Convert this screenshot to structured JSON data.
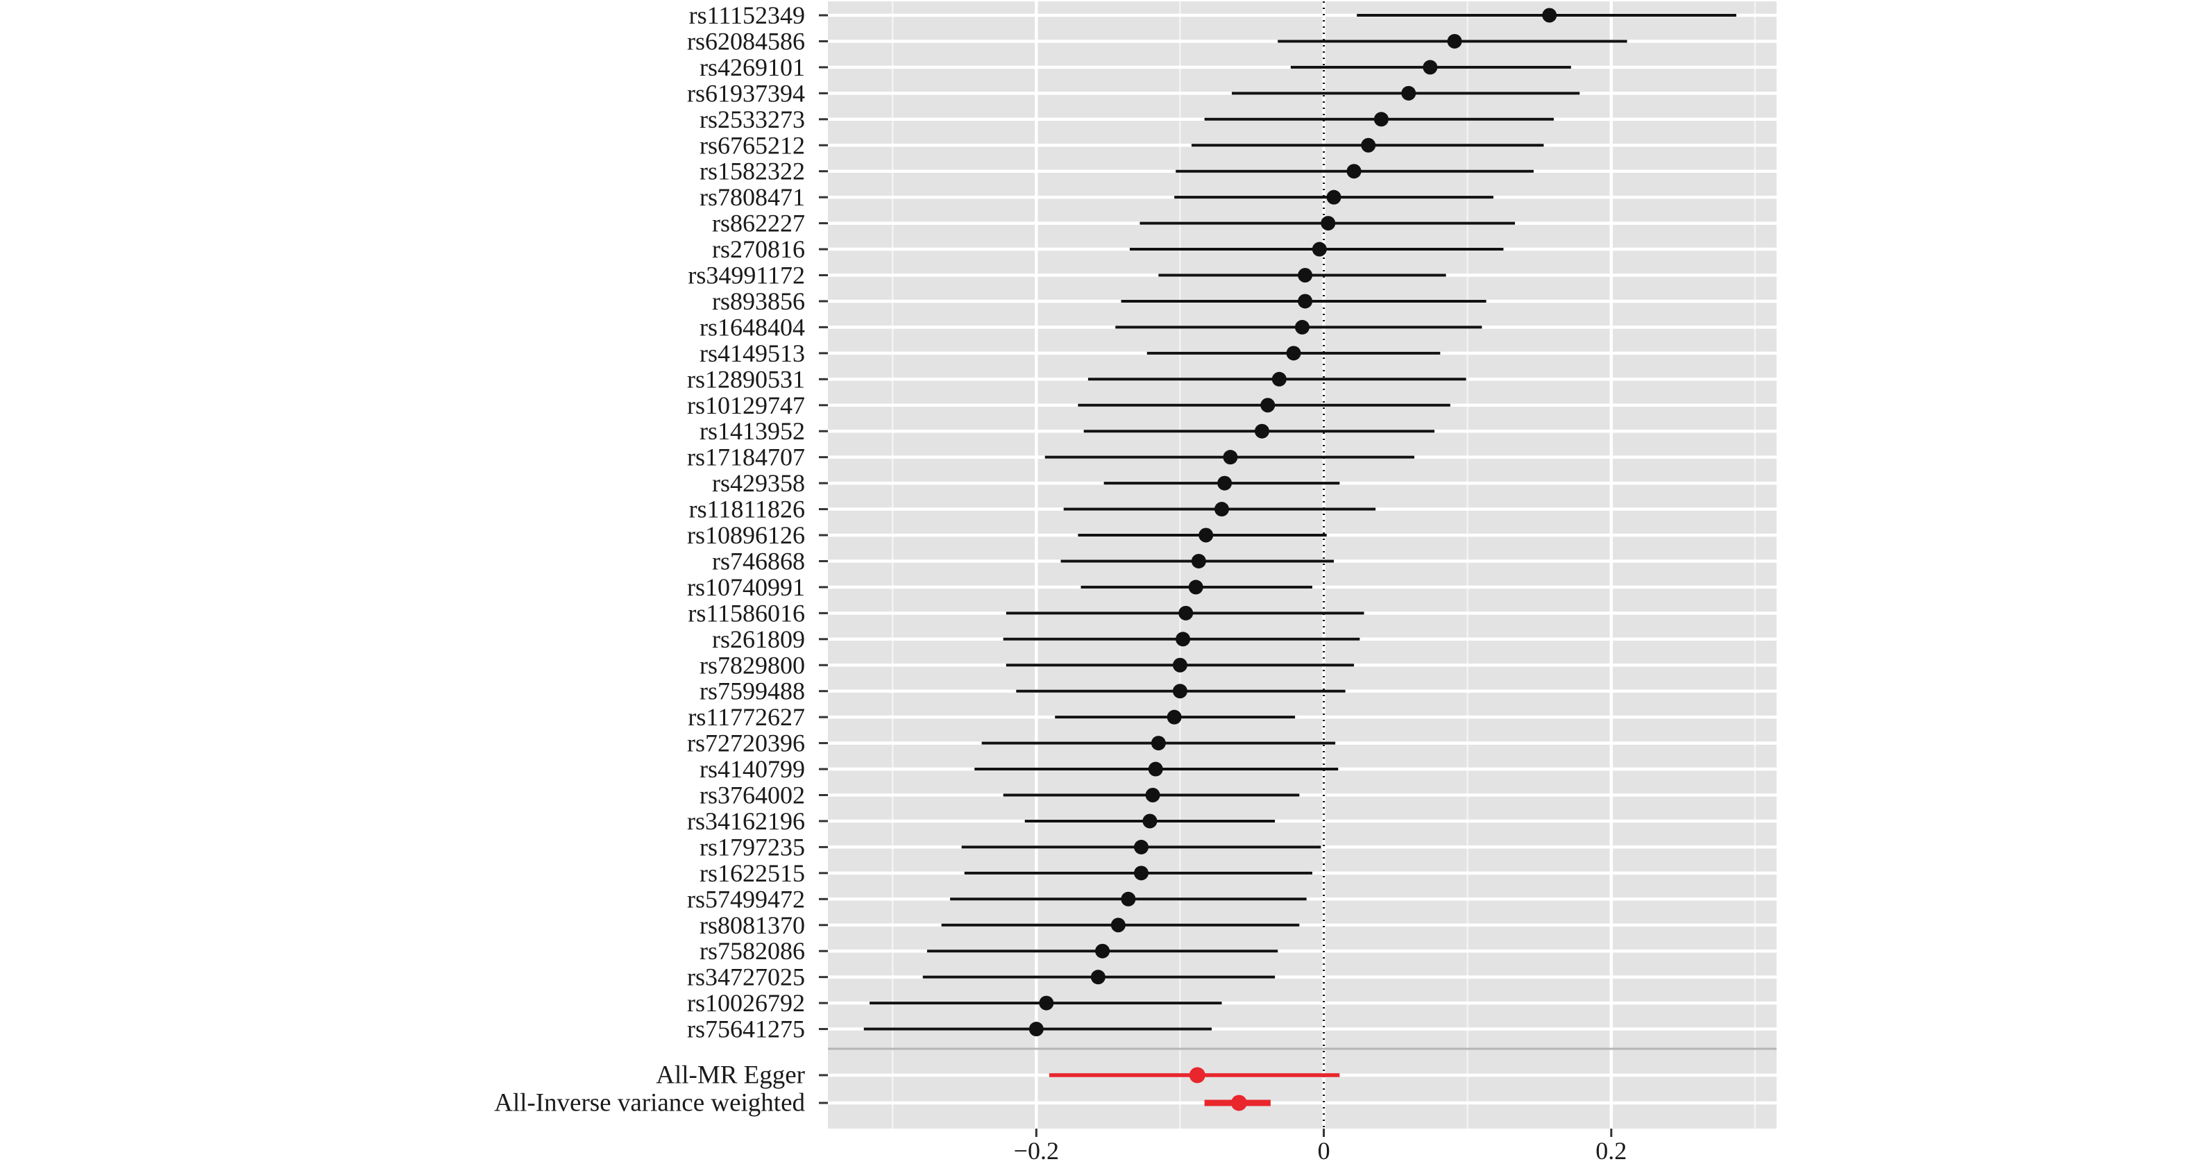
{
  "chart_data": {
    "type": "forest",
    "title": "",
    "xlabel": "",
    "ylabel": "",
    "xlim": [
      -0.345,
      0.315
    ],
    "xticks": [
      -0.2,
      0,
      0.2
    ],
    "xtick_labels": [
      "−0.2",
      "0",
      "0.2"
    ],
    "minor_gridlines_x": [
      -0.3,
      -0.1,
      0.1,
      0.3
    ],
    "reference_line_x": 0,
    "reference_line_style": "dotted",
    "grid": true,
    "panel_background": "#e3e3e3",
    "snp_color": "#111111",
    "summary_color": "#e8262c",
    "snps": [
      {
        "label": "rs11152349",
        "estimate": 0.157,
        "lower": 0.023,
        "upper": 0.287
      },
      {
        "label": "rs62084586",
        "estimate": 0.091,
        "lower": -0.032,
        "upper": 0.211
      },
      {
        "label": "rs4269101",
        "estimate": 0.074,
        "lower": -0.023,
        "upper": 0.172
      },
      {
        "label": "rs61937394",
        "estimate": 0.059,
        "lower": -0.064,
        "upper": 0.178
      },
      {
        "label": "rs2533273",
        "estimate": 0.04,
        "lower": -0.083,
        "upper": 0.16
      },
      {
        "label": "rs6765212",
        "estimate": 0.031,
        "lower": -0.092,
        "upper": 0.153
      },
      {
        "label": "rs1582322",
        "estimate": 0.021,
        "lower": -0.103,
        "upper": 0.146
      },
      {
        "label": "rs7808471",
        "estimate": 0.007,
        "lower": -0.104,
        "upper": 0.118
      },
      {
        "label": "rs862227",
        "estimate": 0.003,
        "lower": -0.128,
        "upper": 0.133
      },
      {
        "label": "rs270816",
        "estimate": -0.003,
        "lower": -0.135,
        "upper": 0.125
      },
      {
        "label": "rs34991172",
        "estimate": -0.013,
        "lower": -0.115,
        "upper": 0.085
      },
      {
        "label": "rs893856",
        "estimate": -0.013,
        "lower": -0.141,
        "upper": 0.113
      },
      {
        "label": "rs1648404",
        "estimate": -0.015,
        "lower": -0.145,
        "upper": 0.11
      },
      {
        "label": "rs4149513",
        "estimate": -0.021,
        "lower": -0.123,
        "upper": 0.081
      },
      {
        "label": "rs12890531",
        "estimate": -0.031,
        "lower": -0.164,
        "upper": 0.099
      },
      {
        "label": "rs10129747",
        "estimate": -0.039,
        "lower": -0.171,
        "upper": 0.088
      },
      {
        "label": "rs1413952",
        "estimate": -0.043,
        "lower": -0.167,
        "upper": 0.077
      },
      {
        "label": "rs17184707",
        "estimate": -0.065,
        "lower": -0.194,
        "upper": 0.063
      },
      {
        "label": "rs429358",
        "estimate": -0.069,
        "lower": -0.153,
        "upper": 0.011
      },
      {
        "label": "rs11811826",
        "estimate": -0.071,
        "lower": -0.181,
        "upper": 0.036
      },
      {
        "label": "rs10896126",
        "estimate": -0.082,
        "lower": -0.171,
        "upper": 0.002
      },
      {
        "label": "rs746868",
        "estimate": -0.087,
        "lower": -0.183,
        "upper": 0.007
      },
      {
        "label": "rs10740991",
        "estimate": -0.089,
        "lower": -0.169,
        "upper": -0.008
      },
      {
        "label": "rs11586016",
        "estimate": -0.096,
        "lower": -0.221,
        "upper": 0.028
      },
      {
        "label": "rs261809",
        "estimate": -0.098,
        "lower": -0.223,
        "upper": 0.025
      },
      {
        "label": "rs7829800",
        "estimate": -0.1,
        "lower": -0.221,
        "upper": 0.021
      },
      {
        "label": "rs7599488",
        "estimate": -0.1,
        "lower": -0.214,
        "upper": 0.015
      },
      {
        "label": "rs11772627",
        "estimate": -0.104,
        "lower": -0.187,
        "upper": -0.02
      },
      {
        "label": "rs72720396",
        "estimate": -0.115,
        "lower": -0.238,
        "upper": 0.008
      },
      {
        "label": "rs4140799",
        "estimate": -0.117,
        "lower": -0.243,
        "upper": 0.01
      },
      {
        "label": "rs3764002",
        "estimate": -0.119,
        "lower": -0.223,
        "upper": -0.017
      },
      {
        "label": "rs34162196",
        "estimate": -0.121,
        "lower": -0.208,
        "upper": -0.034
      },
      {
        "label": "rs1797235",
        "estimate": -0.127,
        "lower": -0.252,
        "upper": -0.002
      },
      {
        "label": "rs1622515",
        "estimate": -0.127,
        "lower": -0.25,
        "upper": -0.008
      },
      {
        "label": "rs57499472",
        "estimate": -0.136,
        "lower": -0.26,
        "upper": -0.012
      },
      {
        "label": "rs8081370",
        "estimate": -0.143,
        "lower": -0.266,
        "upper": -0.017
      },
      {
        "label": "rs7582086",
        "estimate": -0.154,
        "lower": -0.276,
        "upper": -0.032
      },
      {
        "label": "rs34727025",
        "estimate": -0.157,
        "lower": -0.279,
        "upper": -0.034
      },
      {
        "label": "rs10026792",
        "estimate": -0.193,
        "lower": -0.316,
        "upper": -0.071
      },
      {
        "label": "rs75641275",
        "estimate": -0.2,
        "lower": -0.32,
        "upper": -0.078
      }
    ],
    "summary": [
      {
        "label": "All-MR Egger",
        "estimate": -0.088,
        "lower": -0.191,
        "upper": 0.011
      },
      {
        "label": "All-Inverse variance weighted",
        "estimate": -0.059,
        "lower": -0.083,
        "upper": -0.037
      }
    ]
  }
}
